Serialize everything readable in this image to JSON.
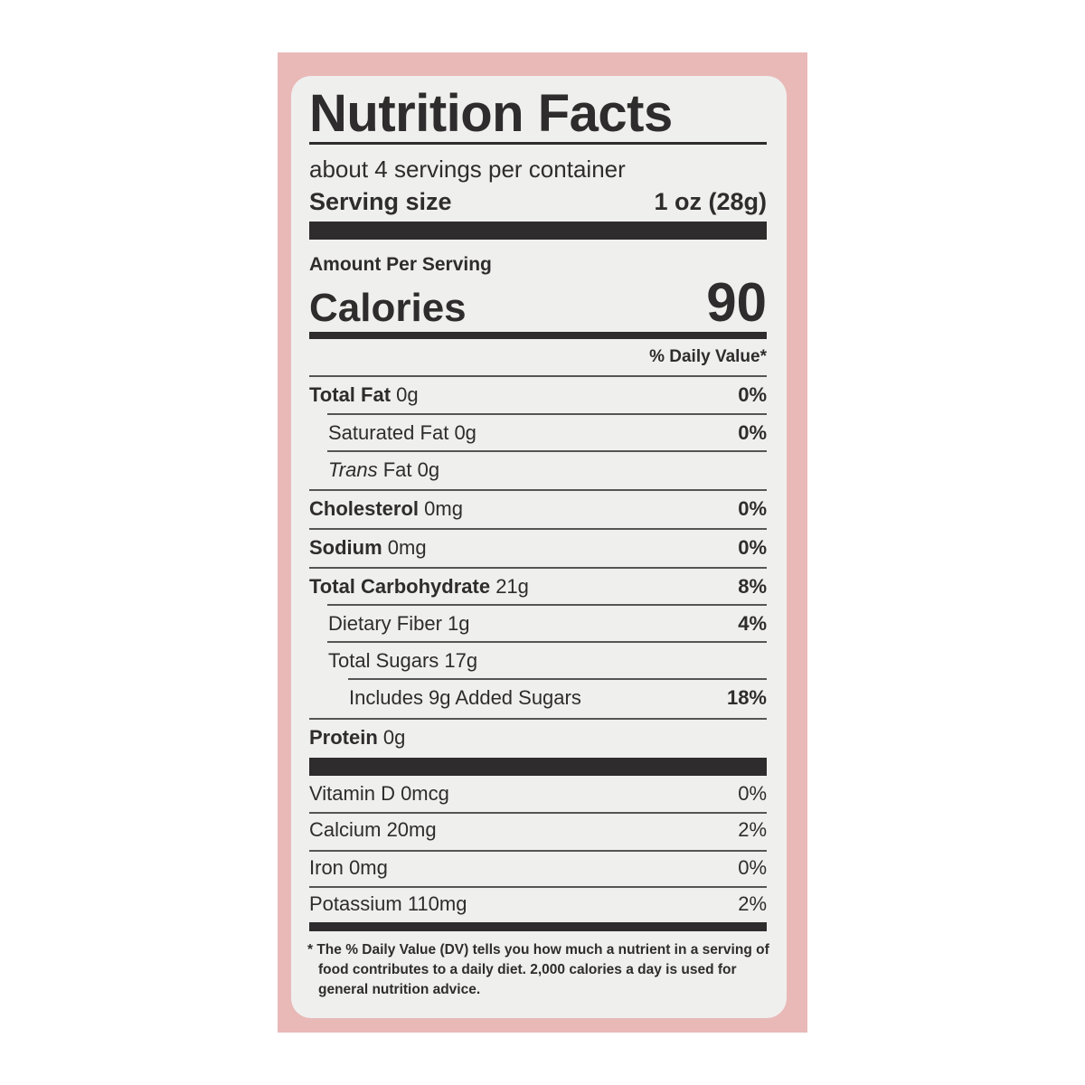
{
  "title": "Nutrition Facts",
  "servings": "about 4 servings per container",
  "serving_size": {
    "label": "Serving size",
    "value": "1 oz (28g)"
  },
  "amount_per_serving": "Amount Per Serving",
  "calories": {
    "label": "Calories",
    "value": "90"
  },
  "daily_value_header": "% Daily Value*",
  "nutrients": [
    {
      "name": "Total Fat",
      "amount": "0g",
      "dv": "0%"
    },
    {
      "name": "Saturated Fat",
      "amount": "0g",
      "dv": "0%"
    },
    {
      "name": "Trans",
      "amount": "Fat 0g",
      "dv": ""
    },
    {
      "name": "Cholesterol",
      "amount": "0mg",
      "dv": "0%"
    },
    {
      "name": "Sodium",
      "amount": "0mg",
      "dv": "0%"
    },
    {
      "name": "Total Carbohydrate",
      "amount": "21g",
      "dv": "8%"
    },
    {
      "name": "Dietary Fiber",
      "amount": "1g",
      "dv": "4%"
    },
    {
      "name": "Total Sugars",
      "amount": "17g",
      "dv": ""
    },
    {
      "name": "Includes 9g Added Sugars",
      "amount": "",
      "dv": "18%"
    },
    {
      "name": "Protein",
      "amount": "0g",
      "dv": ""
    }
  ],
  "vitamins": [
    {
      "label": "Vitamin D 0mcg",
      "dv": "0%"
    },
    {
      "label": "Calcium 20mg",
      "dv": "2%"
    },
    {
      "label": "Iron 0mg",
      "dv": "0%"
    },
    {
      "label": "Potassium 110mg",
      "dv": "2%"
    }
  ],
  "footnote": "* The % Daily Value (DV) tells you how much a nutrient in a serving of food contributes to a daily diet. 2,000 calories a day is used for general nutrition advice.",
  "colors": {
    "package": "#e9b9b8",
    "label": "#efefee",
    "ink": "#2e2c2c"
  }
}
